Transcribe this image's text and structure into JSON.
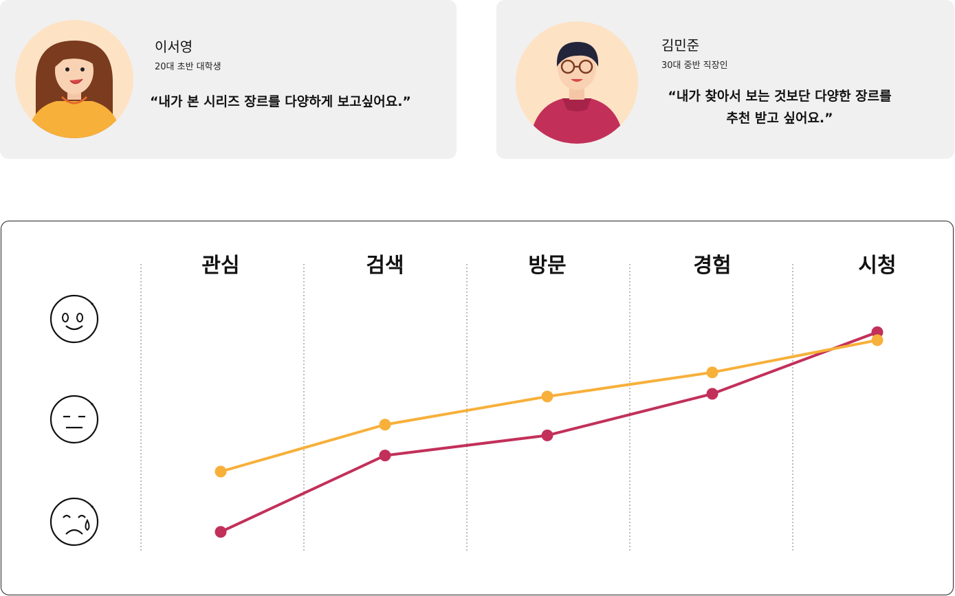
{
  "personas": [
    {
      "name": "이서영",
      "description": "20대 초반 대학생",
      "quote": "“내가 본 시리즈 장르를 다양하게  보고싶어요.”",
      "line_color": "#c2305a"
    },
    {
      "name": "김민준",
      "description": "30대 중반 직장인",
      "quote_lines": [
        "“내가 찾아서 보는 것보단 다양한 장르를",
        "추천 받고 싶어요.”"
      ],
      "line_color": "#f7b03a"
    }
  ],
  "emotion_icons": [
    "happy-face-icon",
    "neutral-face-icon",
    "crying-face-icon"
  ],
  "chart_data": {
    "type": "line",
    "categories": [
      "관심",
      "검색",
      "방문",
      "경험",
      "시청"
    ],
    "y_scale": [
      "sad",
      "neutral",
      "happy"
    ],
    "ylim": [
      0,
      2
    ],
    "grid": "vertical dotted separators",
    "series": [
      {
        "color": "#c2305a",
        "values": [
          0.35,
          0.92,
          1.07,
          1.38,
          1.84
        ]
      },
      {
        "color": "#f7b03a",
        "values": [
          0.8,
          1.15,
          1.36,
          1.54,
          1.78
        ]
      }
    ]
  }
}
